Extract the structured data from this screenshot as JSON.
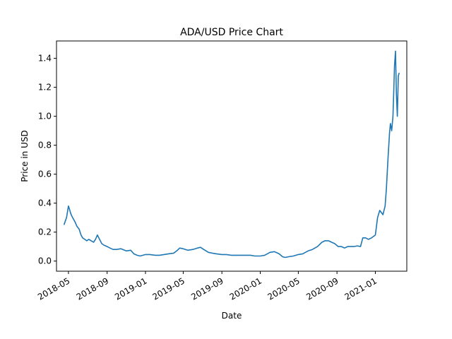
{
  "chart_data": {
    "type": "line",
    "title": "ADA/USD Price Chart",
    "xlabel": "Date",
    "ylabel": "Price in USD",
    "x_tick_labels": [
      "2018-05",
      "2018-09",
      "2019-01",
      "2019-05",
      "2019-09",
      "2020-01",
      "2020-05",
      "2020-09",
      "2021-01"
    ],
    "y_tick_labels": [
      "0.0",
      "0.2",
      "0.4",
      "0.6",
      "0.8",
      "1.0",
      "1.2",
      "1.4"
    ],
    "ylim": [
      -0.07,
      1.52
    ],
    "grid": false,
    "color": "#1f77b4",
    "series": [
      {
        "x": [
          "2018-04-17",
          "2018-04-20",
          "2018-04-25",
          "2018-05-01",
          "2018-05-04",
          "2018-05-08",
          "2018-05-12",
          "2018-05-17",
          "2018-05-22",
          "2018-05-28",
          "2018-06-04",
          "2018-06-10",
          "2018-06-15",
          "2018-06-22",
          "2018-06-28",
          "2018-07-05",
          "2018-07-12",
          "2018-07-20",
          "2018-07-26",
          "2018-08-01",
          "2018-08-08",
          "2018-08-15",
          "2018-08-22",
          "2018-09-01",
          "2018-09-10",
          "2018-09-20",
          "2018-10-01",
          "2018-10-15",
          "2018-11-01",
          "2018-11-15",
          "2018-11-25",
          "2018-12-05",
          "2018-12-15",
          "2019-01-01",
          "2019-01-15",
          "2019-02-01",
          "2019-02-15",
          "2019-03-01",
          "2019-03-15",
          "2019-04-01",
          "2019-04-10",
          "2019-04-20",
          "2019-05-01",
          "2019-05-15",
          "2019-06-01",
          "2019-06-15",
          "2019-06-25",
          "2019-07-05",
          "2019-07-20",
          "2019-08-01",
          "2019-08-15",
          "2019-09-01",
          "2019-09-15",
          "2019-10-01",
          "2019-10-15",
          "2019-11-01",
          "2019-11-15",
          "2019-12-01",
          "2019-12-15",
          "2020-01-01",
          "2020-01-15",
          "2020-02-01",
          "2020-02-15",
          "2020-03-01",
          "2020-03-12",
          "2020-03-20",
          "2020-04-01",
          "2020-04-15",
          "2020-05-01",
          "2020-05-15",
          "2020-06-01",
          "2020-06-15",
          "2020-07-01",
          "2020-07-15",
          "2020-07-25",
          "2020-08-05",
          "2020-08-15",
          "2020-08-25",
          "2020-09-05",
          "2020-09-15",
          "2020-09-25",
          "2020-10-05",
          "2020-10-15",
          "2020-10-25",
          "2020-11-05",
          "2020-11-15",
          "2020-11-22",
          "2020-12-01",
          "2020-12-10",
          "2020-12-20",
          "2021-01-01",
          "2021-01-08",
          "2021-01-15",
          "2021-01-25",
          "2021-02-01",
          "2021-02-05",
          "2021-02-10",
          "2021-02-15",
          "2021-02-18",
          "2021-02-22",
          "2021-02-26",
          "2021-03-01",
          "2021-03-03",
          "2021-03-06",
          "2021-03-09",
          "2021-03-12",
          "2021-03-15",
          "2021-03-18"
        ],
        "y": [
          0.25,
          0.27,
          0.3,
          0.38,
          0.36,
          0.33,
          0.31,
          0.29,
          0.27,
          0.24,
          0.22,
          0.18,
          0.16,
          0.15,
          0.14,
          0.15,
          0.14,
          0.13,
          0.15,
          0.18,
          0.15,
          0.12,
          0.11,
          0.1,
          0.09,
          0.08,
          0.08,
          0.085,
          0.07,
          0.075,
          0.05,
          0.04,
          0.035,
          0.045,
          0.045,
          0.04,
          0.04,
          0.045,
          0.05,
          0.055,
          0.07,
          0.09,
          0.085,
          0.075,
          0.08,
          0.09,
          0.095,
          0.08,
          0.06,
          0.055,
          0.05,
          0.045,
          0.045,
          0.04,
          0.04,
          0.04,
          0.04,
          0.04,
          0.035,
          0.035,
          0.04,
          0.06,
          0.065,
          0.05,
          0.03,
          0.025,
          0.03,
          0.035,
          0.045,
          0.05,
          0.07,
          0.08,
          0.1,
          0.13,
          0.14,
          0.14,
          0.13,
          0.12,
          0.1,
          0.1,
          0.09,
          0.1,
          0.1,
          0.1,
          0.105,
          0.1,
          0.16,
          0.16,
          0.15,
          0.16,
          0.18,
          0.3,
          0.35,
          0.32,
          0.38,
          0.5,
          0.7,
          0.88,
          0.95,
          0.9,
          1.0,
          1.2,
          1.35,
          1.45,
          1.15,
          1.0,
          1.28,
          1.3
        ]
      }
    ]
  }
}
